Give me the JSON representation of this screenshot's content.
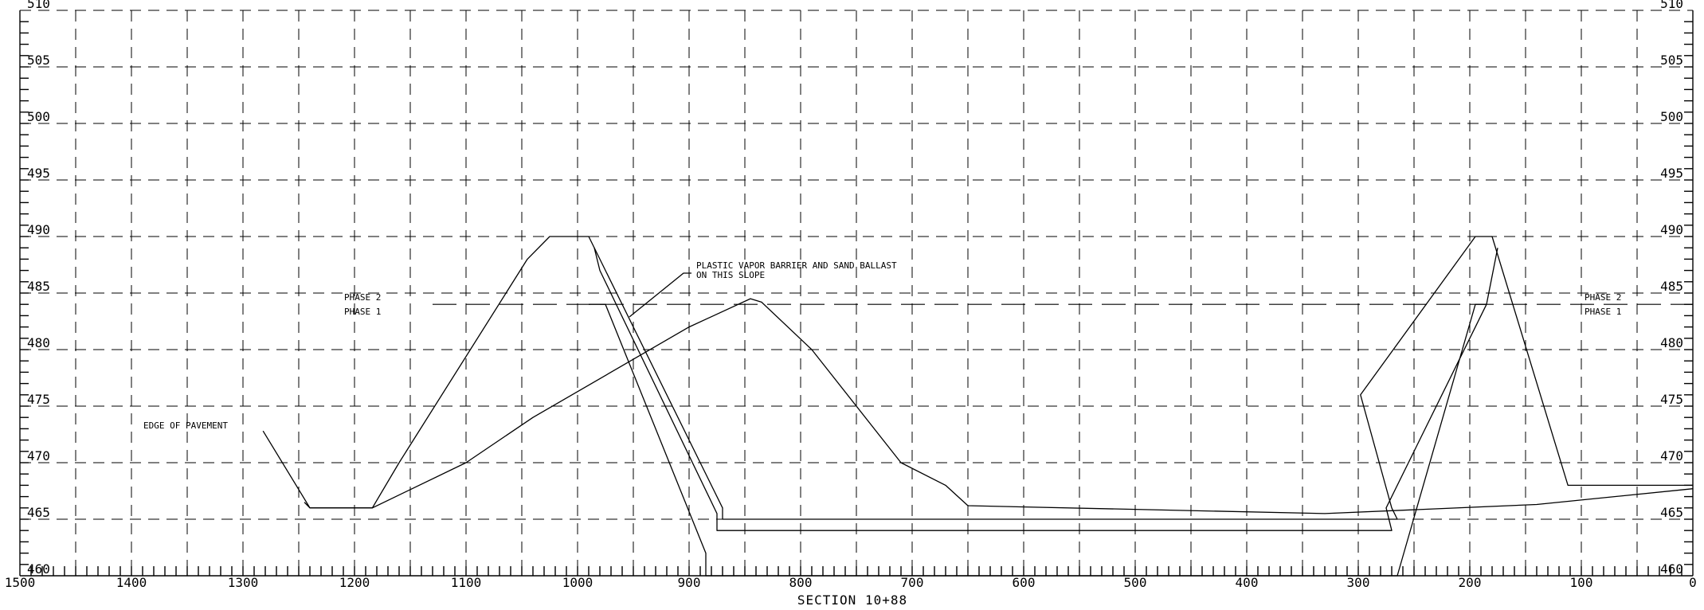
{
  "section_label": "SECTION 10+88",
  "x_ticks": [
    1500,
    1400,
    1300,
    1200,
    1100,
    1000,
    900,
    800,
    700,
    600,
    500,
    400,
    300,
    200,
    100,
    0
  ],
  "y_ticks": [
    510,
    505,
    500,
    495,
    490,
    485,
    480,
    475,
    470,
    465,
    460
  ],
  "annotations": {
    "edge_of_pavement": "EDGE OF PAVEMENT",
    "barrier_line1": "PLASTIC VAPOR BARRIER AND SAND BALLAST",
    "barrier_line2": "ON THIS SLOPE",
    "phase2_left": "PHASE 2",
    "phase1_left": "PHASE 1",
    "phase2_right": "PHASE 2",
    "phase1_right": "PHASE 1"
  },
  "profiles": {
    "existing_ground": [
      [
        1282,
        472.8
      ],
      [
        1240,
        466
      ],
      [
        1184,
        466
      ],
      [
        1100,
        470
      ],
      [
        1040,
        474
      ],
      [
        900,
        482
      ],
      [
        845,
        484.5
      ],
      [
        835,
        484.2
      ],
      [
        790,
        480
      ],
      [
        710,
        470
      ],
      [
        670,
        468
      ],
      [
        650,
        466.2
      ],
      [
        330,
        465.5
      ],
      [
        140,
        466.3
      ],
      [
        0,
        467.7
      ]
    ],
    "outer_cell": [
      [
        1245,
        466.5
      ],
      [
        1240,
        466
      ],
      [
        1184,
        466
      ],
      [
        1160,
        470
      ],
      [
        1045,
        488
      ],
      [
        1025,
        490
      ],
      [
        990,
        490
      ],
      [
        870,
        466
      ],
      [
        870,
        465
      ],
      [
        265,
        465
      ],
      [
        270,
        466
      ],
      [
        298,
        476
      ],
      [
        195,
        490
      ],
      [
        180,
        490
      ],
      [
        112,
        468
      ],
      [
        0,
        468
      ]
    ],
    "liner": [
      [
        985,
        489
      ],
      [
        980,
        487
      ],
      [
        875,
        465.5
      ],
      [
        875,
        464
      ],
      [
        270,
        464
      ],
      [
        275,
        466
      ],
      [
        185,
        484
      ],
      [
        175,
        489
      ]
    ],
    "ballast": [
      [
        990,
        484
      ],
      [
        975,
        484
      ],
      [
        885,
        462
      ],
      [
        885,
        460
      ],
      [
        265,
        460
      ],
      [
        195,
        484
      ],
      [
        185,
        484
      ]
    ],
    "phase_divider": [
      [
        1130,
        484
      ],
      [
        0,
        484
      ]
    ]
  }
}
